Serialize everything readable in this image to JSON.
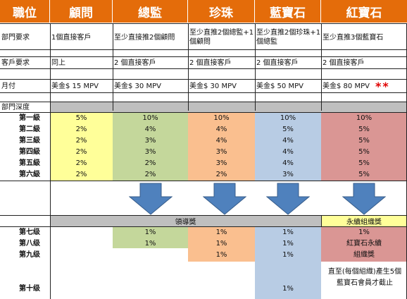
{
  "headers": [
    "職位",
    "顧問",
    "總監",
    "珍珠",
    "藍寶石",
    "紅寶石"
  ],
  "rows": {
    "dept_req": {
      "label": "部門要求",
      "values": [
        "1個直接客戶",
        "至少直接推2個顧問",
        "至少直推2個總監+1個顧問",
        "至少直推2個珍珠+1個總監",
        "至少直推3個藍寶石"
      ]
    },
    "customer_req": {
      "label": "客戶要求",
      "values": [
        "同上",
        "2 個直接客戶",
        "2 個直接客戶",
        "2 個直接客戶",
        "2 個直接客戶"
      ]
    },
    "monthly": {
      "label": "月付",
      "values": [
        "美金$ 15 MPV",
        "美金$ 30 MPV",
        "美金$ 30 MPV",
        "美金$ 50 MPV",
        "美金$ 80 MPV"
      ],
      "stars": "**"
    }
  },
  "depth_label": "部門深度",
  "levels_top": [
    {
      "label": "第一級",
      "values": [
        "5%",
        "10%",
        "10%",
        "10%",
        "10%"
      ]
    },
    {
      "label": "第二級",
      "values": [
        "2%",
        "4%",
        "4%",
        "5%",
        "5%"
      ]
    },
    {
      "label": "第三級",
      "values": [
        "2%",
        "3%",
        "4%",
        "4%",
        "5%"
      ]
    },
    {
      "label": "第四級",
      "values": [
        "2%",
        "3%",
        "3%",
        "4%",
        "5%"
      ]
    },
    {
      "label": "第五級",
      "values": [
        "2%",
        "2%",
        "3%",
        "4%",
        "5%"
      ]
    },
    {
      "label": "第六級",
      "values": [
        "2%",
        "2%",
        "2%",
        "3%",
        "5%"
      ]
    }
  ],
  "leadership_label": "領導獎",
  "continuity_label": "永續組織獎",
  "levels_bottom": [
    {
      "label": "第七级",
      "values": [
        "",
        "1%",
        "1%",
        "1%",
        "1%"
      ]
    },
    {
      "label": "第八级",
      "values": [
        "",
        "1%",
        "1%",
        "1%",
        "紅寶石永續"
      ]
    },
    {
      "label": "第九级",
      "values": [
        "",
        "",
        "1%",
        "1%",
        "組織獎"
      ]
    },
    {
      "label": "第十级",
      "values": [
        "",
        "",
        "",
        "1%",
        ""
      ]
    }
  ],
  "ruby_note": "直至(每個組織)產生5個藍寶石會員才截止",
  "colors": {
    "header_orange": "#e46c0a",
    "yellow": "#ffff99",
    "green": "#c4d79b",
    "orange": "#fabf8f",
    "blue": "#b8cce4",
    "red": "#da9694",
    "gray": "#bfbfbf",
    "pale_yellow": "#ffff99",
    "arrow": "#4f81bd"
  }
}
